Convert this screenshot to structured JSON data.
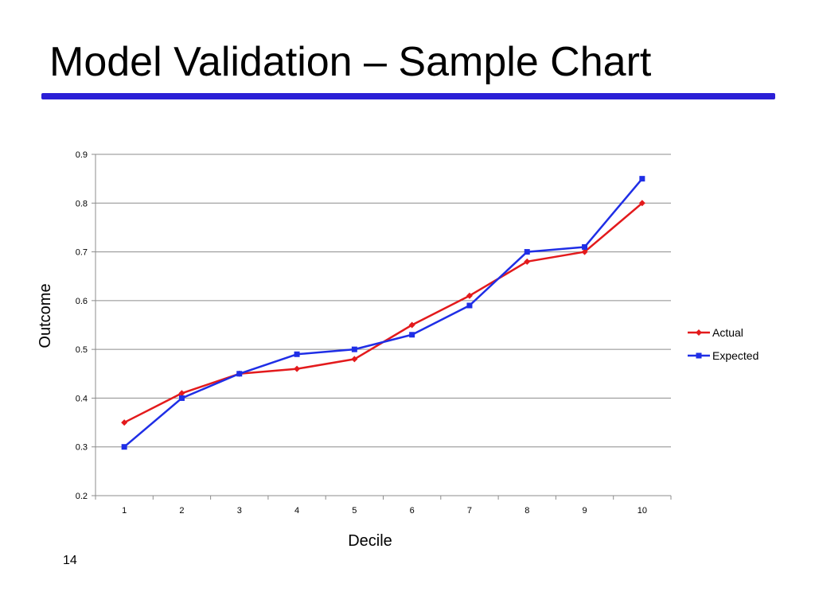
{
  "slide": {
    "title": "Model Validation – Sample Chart",
    "number": "14",
    "accent_color": "#2b1fd6"
  },
  "chart_data": {
    "type": "line",
    "title": "",
    "xlabel": "Decile",
    "ylabel": "Outcome",
    "categories": [
      "1",
      "2",
      "3",
      "4",
      "5",
      "6",
      "7",
      "8",
      "9",
      "10"
    ],
    "ylim": [
      0.2,
      0.9
    ],
    "yticks": [
      0.2,
      0.3,
      0.4,
      0.5,
      0.6,
      0.7,
      0.8,
      0.9
    ],
    "grid": true,
    "legend_position": "right",
    "series": [
      {
        "name": "Actual",
        "color": "#e31a1c",
        "marker": "diamond",
        "values": [
          0.35,
          0.41,
          0.45,
          0.46,
          0.48,
          0.55,
          0.61,
          0.68,
          0.7,
          0.8
        ]
      },
      {
        "name": "Expected",
        "color": "#1f2ee6",
        "marker": "square",
        "values": [
          0.3,
          0.4,
          0.45,
          0.49,
          0.5,
          0.53,
          0.59,
          0.7,
          0.71,
          0.85
        ]
      }
    ]
  }
}
